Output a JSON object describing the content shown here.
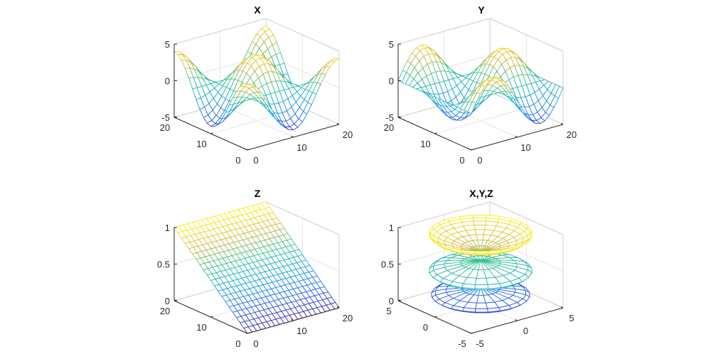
{
  "figure": {
    "background": "#ffffff",
    "colormap": "parula"
  },
  "chart_data": [
    {
      "type": "mesh3d",
      "title": "X",
      "xlim": [
        0,
        20
      ],
      "ylim": [
        0,
        20
      ],
      "zlim": [
        -5,
        5
      ],
      "xticks": [
        "0",
        "10",
        "20"
      ],
      "yticks": [
        "0",
        "10",
        "20"
      ],
      "zticks": [
        "-5",
        "0",
        "5"
      ],
      "xtick_values": [
        0,
        10,
        20
      ],
      "ytick_values": [
        0,
        10,
        20
      ],
      "ztick_values": [
        -5,
        0,
        5
      ],
      "grid_points": 21,
      "z_expression": "4*Math.cos(Math.PI*x/10)*Math.cos(Math.PI*y/10)",
      "grid": true
    },
    {
      "type": "mesh3d",
      "title": "Y",
      "xlim": [
        0,
        20
      ],
      "ylim": [
        0,
        20
      ],
      "zlim": [
        -5,
        5
      ],
      "xticks": [
        "0",
        "10",
        "20"
      ],
      "yticks": [
        "0",
        "10",
        "20"
      ],
      "zticks": [
        "-5",
        "0",
        "5"
      ],
      "xtick_values": [
        0,
        10,
        20
      ],
      "ytick_values": [
        0,
        10,
        20
      ],
      "ztick_values": [
        -5,
        0,
        5
      ],
      "grid_points": 21,
      "z_expression": "4*Math.sin(Math.PI*x/10)*Math.cos(Math.PI*y/10)",
      "grid": true
    },
    {
      "type": "mesh3d",
      "title": "Z",
      "xlim": [
        0,
        20
      ],
      "ylim": [
        0,
        20
      ],
      "zlim": [
        0,
        1
      ],
      "xticks": [
        "0",
        "10",
        "20"
      ],
      "yticks": [
        "0",
        "10",
        "20"
      ],
      "zticks": [
        "0",
        "0.5",
        "1"
      ],
      "xtick_values": [
        0,
        10,
        20
      ],
      "ytick_values": [
        0,
        10,
        20
      ],
      "ztick_values": [
        0,
        0.5,
        1
      ],
      "grid_points": 21,
      "z_expression": "y/20",
      "grid": true
    },
    {
      "type": "mesh3d-revolution",
      "title": "X,Y,Z",
      "xlim": [
        -5,
        5
      ],
      "ylim": [
        -5,
        5
      ],
      "zlim": [
        0,
        1
      ],
      "xticks": [
        "-5",
        "0",
        "5"
      ],
      "yticks": [
        "-5",
        "0",
        "5"
      ],
      "zticks": [
        "0",
        "0.5",
        "1"
      ],
      "xtick_values": [
        -5,
        0,
        5
      ],
      "ytick_values": [
        -5,
        0,
        5
      ],
      "ztick_values": [
        0,
        0.5,
        1
      ],
      "bands": [
        {
          "shape": "ellipsoid",
          "z_range": [
            0.02,
            0.24
          ],
          "r_max": 4.2
        },
        {
          "shape": "ellipsoid",
          "z_range": [
            0.32,
            0.6
          ],
          "r_max": 4.4
        },
        {
          "shape": "bowl",
          "z_range": [
            0.72,
            0.97
          ],
          "r_max": 4.4
        }
      ],
      "angles": 24,
      "grid": true
    }
  ]
}
